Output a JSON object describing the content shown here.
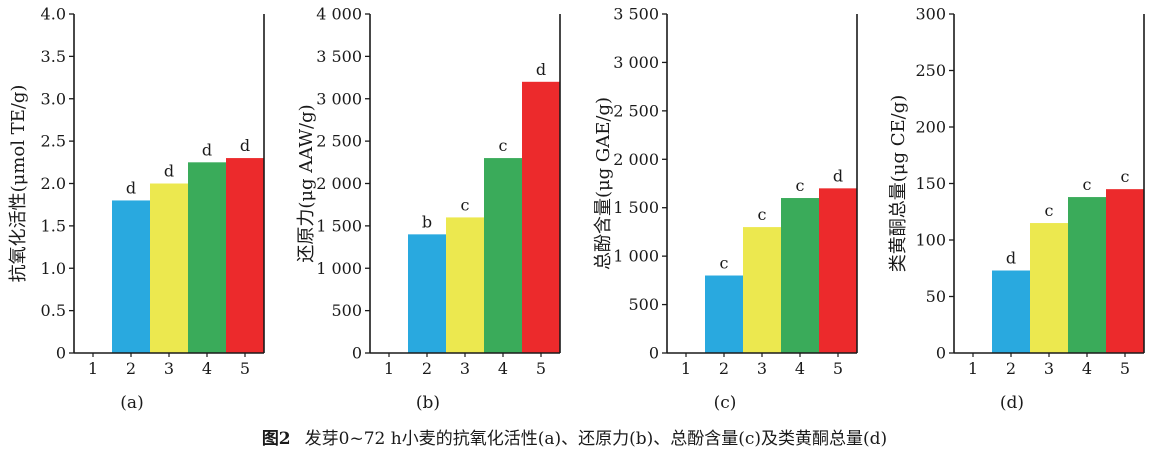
{
  "figure_caption": {
    "label": "图2",
    "text": "发芽0~72 h小麦的抗氧化活性(a)、还原力(b)、总酚含量(c)及类黄酮总量(d)"
  },
  "palette": [
    "#29a9df",
    "#ece84f",
    "#3aab5a",
    "#ec2a2c"
  ],
  "chart_data": [
    {
      "type": "bar",
      "panel_label": "(a)",
      "ylabel": "抗氧化活性(μmol TE/g)",
      "categories": [
        "1",
        "2",
        "3",
        "4",
        "5"
      ],
      "values": [
        0,
        1.8,
        2.0,
        2.25,
        2.3
      ],
      "letters": [
        "",
        "d",
        "d",
        "d",
        "d"
      ],
      "ylim": [
        0,
        4.0
      ],
      "yticks": [
        0,
        0.5,
        1.0,
        1.5,
        2.0,
        2.5,
        3.0,
        3.5,
        4.0
      ],
      "ytick_labels": [
        "0",
        "0.5",
        "1.0",
        "1.5",
        "2.0",
        "2.5",
        "3.0",
        "3.5",
        "4.0"
      ],
      "grid": false
    },
    {
      "type": "bar",
      "panel_label": "(b)",
      "ylabel": "还原力(μg AAW/g)",
      "categories": [
        "1",
        "2",
        "3",
        "4",
        "5"
      ],
      "values": [
        0,
        1400,
        1600,
        2300,
        3200
      ],
      "letters": [
        "",
        "b",
        "c",
        "c",
        "d"
      ],
      "ylim": [
        0,
        4000
      ],
      "yticks": [
        0,
        500,
        1000,
        1500,
        2000,
        2500,
        3000,
        3500,
        4000
      ],
      "ytick_labels": [
        "0",
        "500",
        "1 000",
        "1 500",
        "2 000",
        "2 500",
        "3 000",
        "3 500",
        "4 000"
      ],
      "grid": false
    },
    {
      "type": "bar",
      "panel_label": "(c)",
      "ylabel": "总酚含量(μg GAE/g)",
      "categories": [
        "1",
        "2",
        "3",
        "4",
        "5"
      ],
      "values": [
        0,
        800,
        1300,
        1600,
        1700
      ],
      "letters": [
        "",
        "c",
        "c",
        "c",
        "d"
      ],
      "ylim": [
        0,
        3500
      ],
      "yticks": [
        0,
        500,
        1000,
        1500,
        2000,
        2500,
        3000,
        3500
      ],
      "ytick_labels": [
        "0",
        "500",
        "1 000",
        "1 500",
        "2 000",
        "2 500",
        "3 000",
        "3 500"
      ],
      "grid": false
    },
    {
      "type": "bar",
      "panel_label": "(d)",
      "ylabel": "类黄酮总量(μg CE/g)",
      "categories": [
        "1",
        "2",
        "3",
        "4",
        "5"
      ],
      "values": [
        0,
        73,
        115,
        138,
        145
      ],
      "letters": [
        "",
        "d",
        "c",
        "c",
        "c"
      ],
      "ylim": [
        0,
        300
      ],
      "yticks": [
        0,
        50,
        100,
        150,
        200,
        250,
        300
      ],
      "ytick_labels": [
        "0",
        "50",
        "100",
        "150",
        "200",
        "250",
        "300"
      ],
      "grid": false
    }
  ]
}
